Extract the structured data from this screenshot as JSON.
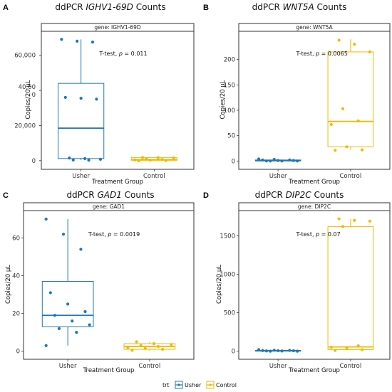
{
  "colors": {
    "Usher": "#1f77b4",
    "Control": "#f5b800"
  },
  "legend": {
    "title": "trt",
    "entries": [
      {
        "name": "Usher",
        "color": "#1f77b4"
      },
      {
        "name": "Control",
        "color": "#f5b800"
      }
    ]
  },
  "panels": [
    {
      "letter": "A",
      "title_prefix": "ddPCR ",
      "title_gene": "IGHV1-69D",
      "title_suffix": " Counts",
      "strip": "gene: IGHV1-69D"
    },
    {
      "letter": "B",
      "title_prefix": "ddPCR ",
      "title_gene": "WNT5A",
      "title_suffix": " Counts",
      "strip": "gene: WNT5A"
    },
    {
      "letter": "C",
      "title_prefix": "ddPCR ",
      "title_gene": "GAD1",
      "title_suffix": " Counts",
      "strip": "gene: GAD1"
    },
    {
      "letter": "D",
      "title_prefix": "ddPCR ",
      "title_gene": "DIP2C",
      "title_suffix": " Counts",
      "strip": "gene: DIP2C"
    }
  ],
  "chart_data": [
    {
      "type": "box",
      "title": "ddPCR IGHV1-69D Counts",
      "xlabel": "Treatment Group",
      "ylabel": "Copies/20 µL",
      "categories": [
        "Usher",
        "Control"
      ],
      "ylim": [
        -2500,
        72000
      ],
      "yticks": [
        0,
        20000,
        40000,
        60000
      ],
      "ytick_labels": [
        [
          "0"
        ],
        [
          "20,000"
        ],
        [
          "40,00",
          "0"
        ],
        [
          "60,000"
        ]
      ],
      "annotation_prefix": "T-test, ",
      "annotation_p": "p",
      "annotation_value": " = 0.011",
      "series": [
        {
          "name": "Usher",
          "q1": 1200,
          "median": 18500,
          "q3": 44000,
          "whisker_low": 300,
          "whisker_high": 69000,
          "points": [
            69000,
            68000,
            67500,
            36000,
            35500,
            35000,
            1500,
            1200,
            800,
            400,
            300
          ]
        },
        {
          "name": "Control",
          "q1": 200,
          "median": 600,
          "q3": 1800,
          "whisker_low": 0,
          "whisker_high": 2000,
          "points": [
            1800,
            1700,
            1500,
            1000,
            700,
            500,
            300,
            100,
            0
          ]
        }
      ]
    },
    {
      "type": "box",
      "title": "ddPCR WNT5A Counts",
      "xlabel": "Treatment Group",
      "ylabel": "Copies/20 µL",
      "categories": [
        "Usher",
        "Control"
      ],
      "ylim": [
        -8,
        250
      ],
      "yticks": [
        0,
        50,
        100,
        150,
        200
      ],
      "ytick_labels": [
        [
          "0"
        ],
        [
          "50"
        ],
        [
          "100"
        ],
        [
          "150"
        ],
        [
          "200"
        ]
      ],
      "annotation_prefix": "T-test, ",
      "annotation_p": "p",
      "annotation_value": " = 0.0065",
      "series": [
        {
          "name": "Usher",
          "q1": 0,
          "median": 1,
          "q3": 2,
          "whisker_low": 0,
          "whisker_high": 4,
          "points": [
            4,
            3,
            2,
            2,
            1,
            1,
            0,
            0,
            0,
            0
          ]
        },
        {
          "name": "Control",
          "q1": 28,
          "median": 78,
          "q3": 215,
          "whisker_low": 22,
          "whisker_high": 240,
          "points": [
            238,
            230,
            215,
            103,
            79,
            72,
            28,
            22,
            21
          ]
        }
      ]
    },
    {
      "type": "box",
      "title": "ddPCR GAD1 Counts",
      "xlabel": "Treatment Group",
      "ylabel": "Copies/20 µL",
      "categories": [
        "Usher",
        "Control"
      ],
      "ylim": [
        -2,
        73
      ],
      "yticks": [
        0,
        20,
        40,
        60
      ],
      "ytick_labels": [
        [
          "0"
        ],
        [
          "20"
        ],
        [
          "40"
        ],
        [
          "60"
        ]
      ],
      "annotation_prefix": "T-test, ",
      "annotation_p": "p",
      "annotation_value": " = 0.0019",
      "series": [
        {
          "name": "Usher",
          "q1": 13,
          "median": 19,
          "q3": 37,
          "whisker_low": 3,
          "whisker_high": 70,
          "points": [
            70,
            62,
            54,
            31,
            25,
            21,
            19,
            16,
            14,
            12,
            10,
            3
          ]
        },
        {
          "name": "Control",
          "q1": 1,
          "median": 2.5,
          "q3": 4,
          "whisker_low": 0,
          "whisker_high": 5,
          "points": [
            5,
            4,
            3.5,
            3,
            2.5,
            2,
            1.5,
            1,
            0.5
          ]
        }
      ]
    },
    {
      "type": "box",
      "title": "ddPCR DIP2C Counts",
      "xlabel": "Treatment Group",
      "ylabel": "Copies/20 µL",
      "categories": [
        "Usher",
        "Control"
      ],
      "ylim": [
        -50,
        1790
      ],
      "yticks": [
        0,
        500,
        1000,
        1500
      ],
      "ytick_labels": [
        [
          "0"
        ],
        [
          "500"
        ],
        [
          "1000"
        ],
        [
          "1500"
        ]
      ],
      "annotation_prefix": "T-test, ",
      "annotation_p": "p",
      "annotation_value": " = 0.07",
      "series": [
        {
          "name": "Usher",
          "q1": 0,
          "median": 5,
          "q3": 10,
          "whisker_low": 0,
          "whisker_high": 20,
          "points": [
            20,
            12,
            10,
            8,
            6,
            5,
            3,
            2,
            0,
            0
          ]
        },
        {
          "name": "Control",
          "q1": 20,
          "median": 55,
          "q3": 1620,
          "whisker_low": 10,
          "whisker_high": 1720,
          "points": [
            1720,
            1700,
            1690,
            1620,
            70,
            50,
            40,
            20,
            10
          ]
        }
      ]
    }
  ]
}
